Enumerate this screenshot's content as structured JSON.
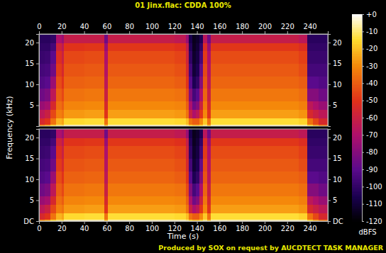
{
  "chart_data": {
    "type": "heatmap",
    "title": "01 Jinx.flac: CDDA 100%",
    "x_label": "Time (s)",
    "y_label": "Frequency (kHz)",
    "colorbar_label": "dBFS",
    "footer": "Produced by SOX on request by AUCDTECT TASK MANAGER",
    "xlim": [
      0,
      256
    ],
    "xticks": [
      0,
      20,
      40,
      60,
      80,
      100,
      120,
      140,
      160,
      180,
      200,
      220,
      240
    ],
    "ylim": [
      0,
      22.05
    ],
    "time_edges": [
      0,
      5,
      10,
      15,
      20,
      22,
      40,
      58,
      61,
      80,
      100,
      120,
      130,
      133,
      136,
      139,
      142,
      145,
      149,
      152,
      170,
      190,
      210,
      230,
      238,
      243,
      248,
      256
    ],
    "freq_edges": [
      0,
      0.5,
      2,
      4,
      6,
      9,
      12,
      15,
      18,
      20,
      22.05
    ],
    "colorbar_range": [
      -120,
      0
    ],
    "colorbar_ticks": [
      {
        "value": 0,
        "label": "+0"
      },
      -10,
      -20,
      -30,
      -40,
      -50,
      -60,
      -70,
      -80,
      -90,
      -100,
      -110,
      -120
    ],
    "channels": [
      {
        "yticks": [
          5,
          10,
          15,
          20
        ],
        "cells": [
          [
            -30,
            -25,
            -15,
            -10,
            -12,
            -5,
            -5,
            -20,
            -5,
            -5,
            -5,
            -5,
            -8,
            -15,
            -20,
            -20,
            -15,
            -8,
            -20,
            -5,
            -5,
            -5,
            -5,
            -6,
            -15,
            -25,
            -35
          ],
          [
            -55,
            -50,
            -35,
            -22,
            -25,
            -15,
            -14,
            -35,
            -14,
            -14,
            -14,
            -15,
            -20,
            -35,
            -40,
            -40,
            -30,
            -18,
            -35,
            -14,
            -14,
            -14,
            -14,
            -16,
            -35,
            -45,
            -55
          ],
          [
            -65,
            -60,
            -45,
            -32,
            -35,
            -27,
            -26,
            -50,
            -26,
            -26,
            -26,
            -27,
            -35,
            -60,
            -70,
            -65,
            -50,
            -30,
            -50,
            -26,
            -26,
            -26,
            -26,
            -28,
            -55,
            -60,
            -65
          ],
          [
            -75,
            -72,
            -55,
            -36,
            -40,
            -31,
            -30,
            -55,
            -30,
            -30,
            -30,
            -31,
            -40,
            -70,
            -85,
            -80,
            -60,
            -34,
            -55,
            -30,
            -30,
            -30,
            -30,
            -32,
            -65,
            -70,
            -75
          ],
          [
            -85,
            -82,
            -65,
            -40,
            -45,
            -35,
            -34,
            -60,
            -34,
            -34,
            -34,
            -35,
            -45,
            -80,
            -95,
            -90,
            -70,
            -38,
            -60,
            -34,
            -34,
            -34,
            -34,
            -36,
            -80,
            -80,
            -85
          ],
          [
            -92,
            -90,
            -75,
            -44,
            -50,
            -39,
            -38,
            -65,
            -38,
            -38,
            -38,
            -40,
            -50,
            -90,
            -105,
            -100,
            -80,
            -42,
            -65,
            -38,
            -38,
            -38,
            -38,
            -40,
            -90,
            -90,
            -92
          ],
          [
            -95,
            -94,
            -85,
            -48,
            -55,
            -42,
            -41,
            -68,
            -41,
            -41,
            -41,
            -43,
            -55,
            -95,
            -110,
            -105,
            -88,
            -45,
            -68,
            -41,
            -41,
            -41,
            -41,
            -44,
            -95,
            -95,
            -95
          ],
          [
            -98,
            -97,
            -90,
            -52,
            -60,
            -45,
            -44,
            -70,
            -44,
            -44,
            -44,
            -46,
            -58,
            -100,
            -112,
            -108,
            -95,
            -48,
            -70,
            -44,
            -44,
            -44,
            -44,
            -47,
            -98,
            -98,
            -98
          ],
          [
            -100,
            -100,
            -95,
            -58,
            -65,
            -50,
            -49,
            -75,
            -49,
            -49,
            -49,
            -51,
            -62,
            -103,
            -114,
            -110,
            -100,
            -53,
            -75,
            -49,
            -49,
            -49,
            -49,
            -52,
            -100,
            -100,
            -100
          ],
          [
            -102,
            -102,
            -100,
            -70,
            -75,
            -62,
            -62,
            -85,
            -62,
            -62,
            -62,
            -64,
            -75,
            -106,
            -115,
            -112,
            -105,
            -66,
            -85,
            -62,
            -62,
            -62,
            -62,
            -65,
            -102,
            -102,
            -102
          ]
        ]
      },
      {
        "yticks": [
          {
            "value": 0,
            "label": "DC"
          },
          5,
          10,
          15,
          20
        ],
        "cells": [
          [
            -30,
            -25,
            -15,
            -10,
            -12,
            -5,
            -5,
            -20,
            -5,
            -5,
            -5,
            -5,
            -8,
            -15,
            -20,
            -20,
            -15,
            -8,
            -20,
            -5,
            -5,
            -5,
            -5,
            -6,
            -15,
            -25,
            -35
          ],
          [
            -55,
            -50,
            -35,
            -22,
            -25,
            -15,
            -14,
            -35,
            -14,
            -14,
            -14,
            -15,
            -20,
            -35,
            -40,
            -40,
            -30,
            -18,
            -35,
            -14,
            -14,
            -14,
            -14,
            -16,
            -35,
            -45,
            -55
          ],
          [
            -65,
            -60,
            -45,
            -32,
            -35,
            -27,
            -26,
            -50,
            -26,
            -26,
            -26,
            -27,
            -35,
            -60,
            -70,
            -65,
            -50,
            -30,
            -50,
            -26,
            -26,
            -26,
            -26,
            -28,
            -55,
            -60,
            -65
          ],
          [
            -75,
            -72,
            -55,
            -36,
            -40,
            -31,
            -30,
            -55,
            -30,
            -30,
            -30,
            -31,
            -40,
            -70,
            -85,
            -80,
            -60,
            -34,
            -55,
            -30,
            -30,
            -30,
            -30,
            -32,
            -65,
            -70,
            -75
          ],
          [
            -85,
            -82,
            -65,
            -40,
            -45,
            -35,
            -34,
            -60,
            -34,
            -34,
            -34,
            -35,
            -45,
            -80,
            -95,
            -90,
            -70,
            -38,
            -60,
            -34,
            -34,
            -34,
            -34,
            -36,
            -80,
            -80,
            -85
          ],
          [
            -92,
            -90,
            -75,
            -44,
            -50,
            -39,
            -38,
            -65,
            -38,
            -38,
            -38,
            -40,
            -50,
            -90,
            -105,
            -100,
            -80,
            -42,
            -65,
            -38,
            -38,
            -38,
            -38,
            -40,
            -90,
            -90,
            -92
          ],
          [
            -95,
            -94,
            -85,
            -48,
            -55,
            -42,
            -41,
            -68,
            -41,
            -41,
            -41,
            -43,
            -55,
            -95,
            -110,
            -105,
            -88,
            -45,
            -68,
            -41,
            -41,
            -41,
            -41,
            -44,
            -95,
            -95,
            -95
          ],
          [
            -98,
            -97,
            -90,
            -52,
            -60,
            -45,
            -44,
            -70,
            -44,
            -44,
            -44,
            -46,
            -58,
            -100,
            -112,
            -108,
            -95,
            -48,
            -70,
            -44,
            -44,
            -44,
            -44,
            -47,
            -98,
            -98,
            -98
          ],
          [
            -100,
            -100,
            -95,
            -58,
            -65,
            -50,
            -49,
            -75,
            -49,
            -49,
            -49,
            -51,
            -62,
            -103,
            -114,
            -110,
            -100,
            -53,
            -75,
            -49,
            -49,
            -49,
            -49,
            -52,
            -100,
            -100,
            -100
          ],
          [
            -102,
            -102,
            -100,
            -70,
            -75,
            -62,
            -62,
            -85,
            -62,
            -62,
            -62,
            -64,
            -75,
            -106,
            -115,
            -112,
            -105,
            -66,
            -85,
            -62,
            -62,
            -62,
            -62,
            -65,
            -102,
            -102,
            -102
          ]
        ]
      }
    ]
  }
}
